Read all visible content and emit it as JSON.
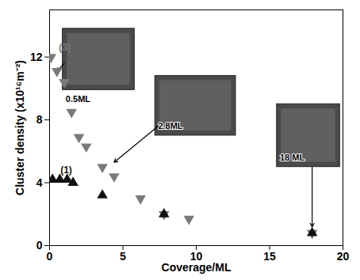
{
  "chart_data": {
    "type": "scatter",
    "x_label": "Coverage/ML",
    "y_label": "Cluster density (x10¹⁶m⁻²)",
    "xlim": [
      0,
      20
    ],
    "xticks": [
      0,
      5,
      10,
      15,
      20
    ],
    "ylim": [
      0,
      15
    ],
    "yticks": [
      0,
      4,
      8,
      12
    ],
    "series": [
      {
        "name": "(3)",
        "color": "#7a7a7a",
        "marker": "triangle-down",
        "x": [
          0.1,
          0.5,
          1.0,
          1.5,
          2.0,
          2.5,
          3.6,
          4.4,
          6.2,
          7.8,
          9.5,
          17.9
        ],
        "values": [
          12.0,
          11.1,
          10.4,
          8.5,
          6.9,
          6.3,
          5.0,
          4.4,
          3.0,
          2.0,
          1.7,
          0.8
        ]
      },
      {
        "name": "(1)",
        "color": "#111111",
        "marker": "triangle-up",
        "x": [
          0.2,
          0.7,
          1.2,
          1.6,
          3.6,
          7.8,
          17.9
        ],
        "values": [
          4.2,
          4.2,
          4.2,
          4.0,
          3.2,
          2.0,
          0.8
        ]
      }
    ],
    "annotations": [
      {
        "text": "0.5ML",
        "arrow_to": [
          0.5,
          11.1
        ]
      },
      {
        "text": "2.8ML",
        "arrow_to": [
          4.4,
          5.3
        ]
      },
      {
        "text": "18 ML",
        "arrow_to": [
          17.9,
          1.2
        ]
      }
    ]
  }
}
